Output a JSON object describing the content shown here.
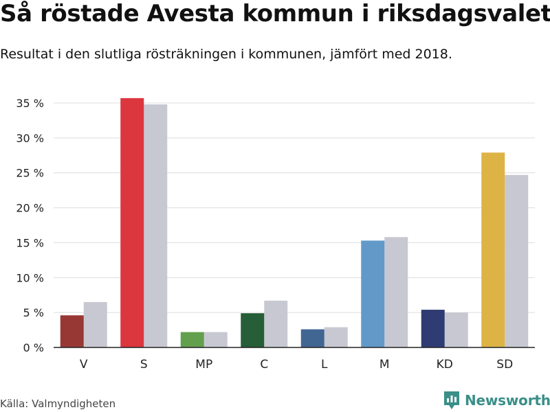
{
  "header": {
    "title": "Så röstade Avesta kommun i riksdagsvalet",
    "subtitle": "Resultat i den slutliga rösträkningen i kommunen, jämfört med 2018."
  },
  "footer": {
    "source": "Källa: Valmyndigheten",
    "brand_name": "Newsworthy",
    "brand_icon": "newsworthy-logo-icon",
    "brand_color": "#3a8f88"
  },
  "chart_data": {
    "type": "bar",
    "categories": [
      "V",
      "S",
      "MP",
      "C",
      "L",
      "M",
      "KD",
      "SD"
    ],
    "series": [
      {
        "values": [
          4.6,
          35.7,
          2.2,
          4.9,
          2.6,
          15.3,
          5.4,
          27.9
        ],
        "colors": [
          "#983835",
          "#dc363e",
          "#63a04e",
          "#255e37",
          "#426692",
          "#6299c8",
          "#2f3c73",
          "#ddb345"
        ]
      },
      {
        "values": [
          6.5,
          34.8,
          2.2,
          6.7,
          2.9,
          15.8,
          5.0,
          24.7
        ],
        "color": "#c8c8d2"
      }
    ],
    "yticks": [
      "0 %",
      "5 %",
      "10 %",
      "15 %",
      "20 %",
      "25 %",
      "30 %",
      "35 %"
    ],
    "ylim": [
      0,
      35
    ],
    "grid": true,
    "legend": "none"
  }
}
